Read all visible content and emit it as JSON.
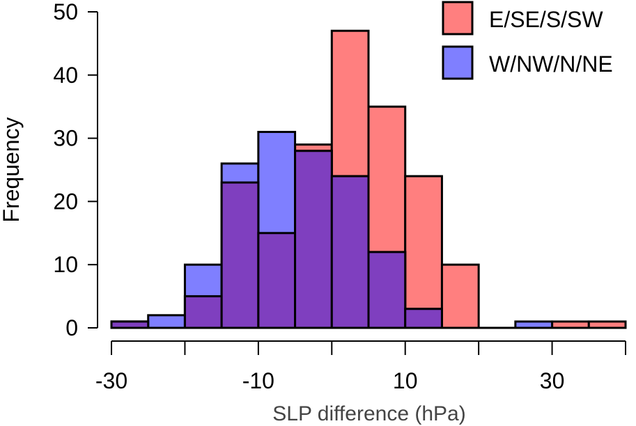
{
  "chart_data": {
    "type": "bar",
    "title": "",
    "xlabel": "SLP difference (hPa)",
    "ylabel": "Frequency",
    "xlim": [
      -30,
      40
    ],
    "ylim": [
      0,
      50
    ],
    "bin_edges": [
      -30,
      -25,
      -20,
      -15,
      -10,
      -5,
      0,
      5,
      10,
      15,
      20,
      25,
      30,
      35,
      40
    ],
    "xticks": [
      -30,
      -20,
      -10,
      0,
      10,
      20,
      30,
      40
    ],
    "xtick_labels": [
      "-30",
      "",
      "-10",
      "",
      "10",
      "",
      "30",
      ""
    ],
    "yticks": [
      0,
      10,
      20,
      30,
      40,
      50
    ],
    "ytick_labels": [
      "0",
      "10",
      "20",
      "30",
      "40",
      "50"
    ],
    "legend_position": "top-right",
    "grid": false,
    "series": [
      {
        "name": "E/SE/S/SW",
        "color": "#ff7f7f",
        "values": [
          1,
          0,
          5,
          23,
          15,
          29,
          47,
          35,
          24,
          10,
          0,
          0,
          1,
          1
        ]
      },
      {
        "name": "W/NW/N/NE",
        "color": "#7f7fff",
        "values": [
          1,
          2,
          10,
          26,
          31,
          28,
          24,
          12,
          3,
          0,
          0,
          1,
          0,
          0
        ]
      }
    ],
    "overlap_color": "#803fbf"
  }
}
